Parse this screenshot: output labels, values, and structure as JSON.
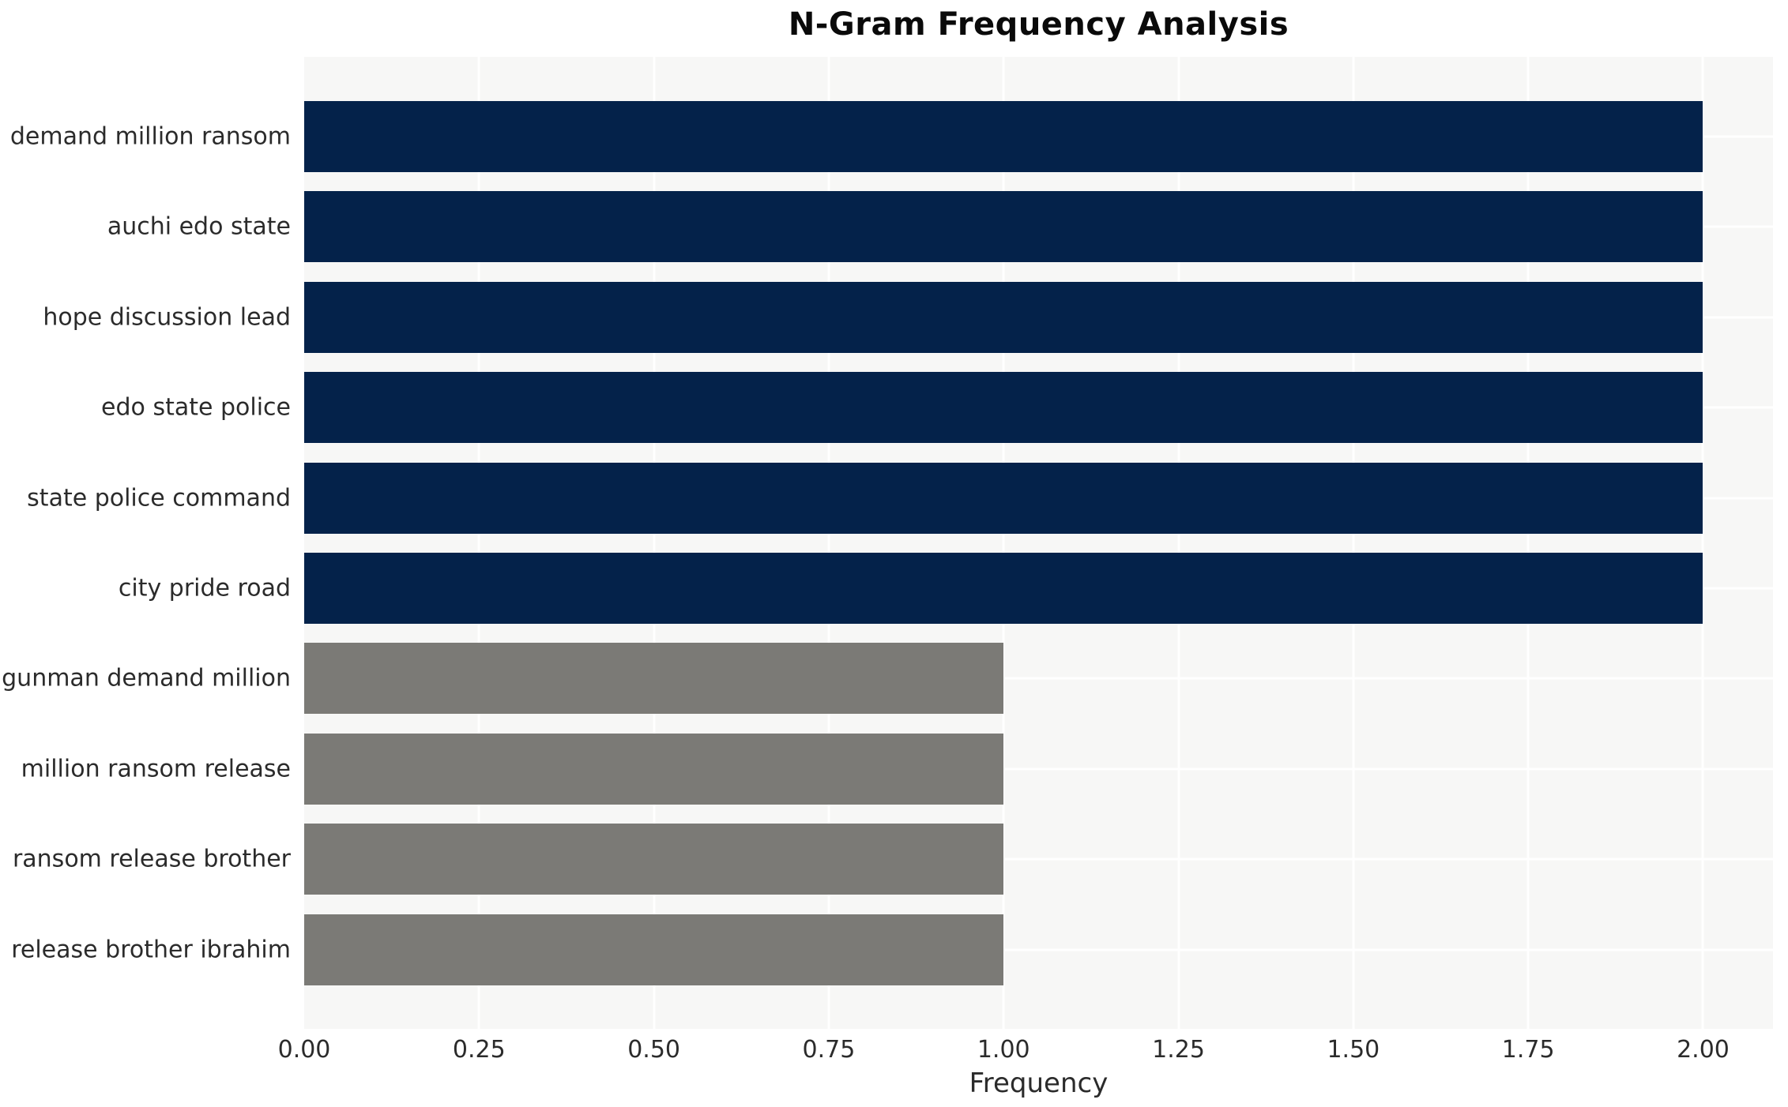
{
  "chart_data": {
    "type": "bar",
    "orientation": "horizontal",
    "title": "N-Gram Frequency Analysis",
    "xlabel": "Frequency",
    "ylabel": "",
    "categories": [
      "demand million ransom",
      "auchi edo state",
      "hope discussion lead",
      "edo state police",
      "state police command",
      "city pride road",
      "gunman demand million",
      "million ransom release",
      "ransom release brother",
      "release brother ibrahim"
    ],
    "values": [
      2,
      2,
      2,
      2,
      2,
      2,
      1,
      1,
      1,
      1
    ],
    "bar_colors": [
      "#04224a",
      "#04224a",
      "#04224a",
      "#04224a",
      "#04224a",
      "#04224a",
      "#7b7a76",
      "#7b7a76",
      "#7b7a76",
      "#7b7a76"
    ],
    "xlim": [
      0,
      2.1
    ],
    "xticks": [
      0,
      0.25,
      0.5,
      0.75,
      1.0,
      1.25,
      1.5,
      1.75,
      2.0
    ],
    "xtick_labels": [
      "0.00",
      "0.25",
      "0.50",
      "0.75",
      "1.00",
      "1.25",
      "1.50",
      "1.75",
      "2.00"
    ],
    "grid": true,
    "grid_color": "#ffffff",
    "plot_background": "#f7f7f6",
    "legend": null,
    "colors": {
      "high_frequency_bar": "#04224a",
      "low_frequency_bar": "#7b7a76",
      "text": "#2b2b2b",
      "title_text": "#0a0a0a"
    }
  }
}
